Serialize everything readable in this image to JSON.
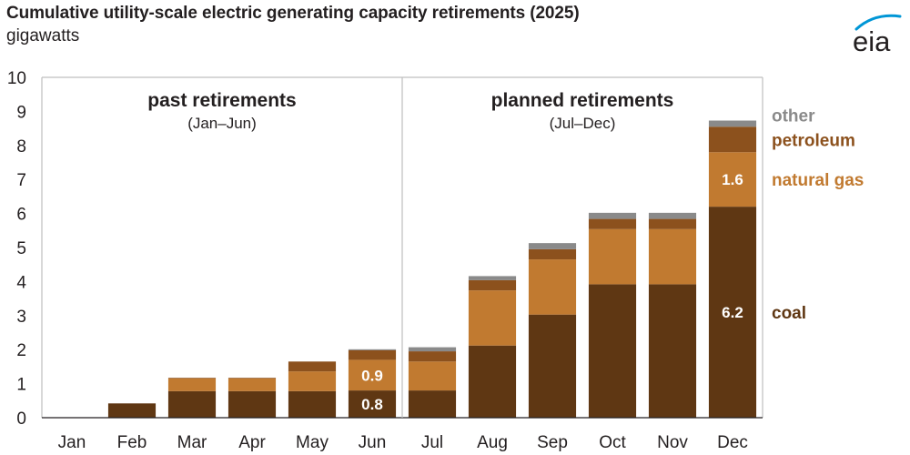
{
  "header": {
    "title": "Cumulative utility-scale electric generating capacity retirements (2025)",
    "subtitle": "gigawatts",
    "logo_text": "eia"
  },
  "chart_data": {
    "type": "bar",
    "stacked": true,
    "title": "Cumulative utility-scale electric generating capacity retirements (2025)",
    "ylabel": "gigawatts",
    "ylim": [
      0,
      10
    ],
    "yticks": [
      0,
      1,
      2,
      3,
      4,
      5,
      6,
      7,
      8,
      9,
      10
    ],
    "grid": false,
    "categories": [
      "Jan",
      "Feb",
      "Mar",
      "Apr",
      "May",
      "Jun",
      "Jul",
      "Aug",
      "Sep",
      "Oct",
      "Nov",
      "Dec"
    ],
    "series": [
      {
        "name": "coal",
        "color": "#5f3713",
        "values": [
          0,
          0.42,
          0.78,
          0.78,
          0.78,
          0.8,
          0.8,
          2.12,
          3.03,
          3.92,
          3.92,
          6.2
        ]
      },
      {
        "name": "natural gas",
        "color": "#c17a30",
        "values": [
          0,
          0,
          0.37,
          0.37,
          0.58,
          0.9,
          0.85,
          1.62,
          1.62,
          1.62,
          1.62,
          1.6
        ]
      },
      {
        "name": "petroleum",
        "color": "#8c511d",
        "values": [
          0,
          0,
          0.02,
          0.02,
          0.29,
          0.28,
          0.3,
          0.3,
          0.3,
          0.3,
          0.3,
          0.75
        ]
      },
      {
        "name": "other",
        "color": "#8a8a8a",
        "values": [
          0,
          0,
          0,
          0,
          0,
          0.03,
          0.12,
          0.12,
          0.18,
          0.18,
          0.18,
          0.18
        ]
      }
    ],
    "data_labels": [
      {
        "category": "Jun",
        "series": "coal",
        "text": "0.8"
      },
      {
        "category": "Jun",
        "series": "natural gas",
        "text": "0.9"
      },
      {
        "category": "Dec",
        "series": "coal",
        "text": "6.2"
      },
      {
        "category": "Dec",
        "series": "natural gas",
        "text": "1.6"
      }
    ],
    "panels": [
      {
        "title": "past retirements",
        "subtitle": "(Jan–Jun)",
        "from": "Jan",
        "to": "Jun"
      },
      {
        "title": "planned retirements",
        "subtitle": "(Jul–Dec)",
        "from": "Jul",
        "to": "Dec"
      }
    ],
    "legend": [
      {
        "series": "other",
        "text": "other"
      },
      {
        "series": "petroleum",
        "text": "petroleum"
      },
      {
        "series": "natural gas",
        "text": "natural gas"
      },
      {
        "series": "coal",
        "text": "coal"
      }
    ],
    "legend_placement": "right"
  }
}
